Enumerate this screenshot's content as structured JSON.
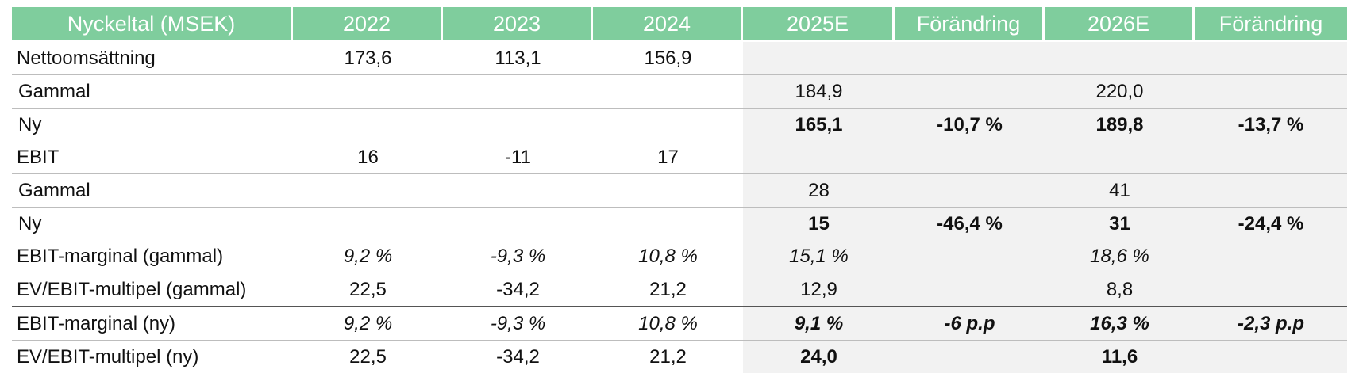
{
  "header": [
    "Nyckeltal (MSEK)",
    "2022",
    "2023",
    "2024",
    "2025E",
    "Förändring",
    "2026E",
    "Förändring"
  ],
  "rows": [
    {
      "label": "Nettoomsättning",
      "cells": [
        "173,6",
        "113,1",
        "156,9",
        "",
        "",
        "",
        ""
      ]
    },
    {
      "label": "Gammal",
      "cells": [
        "",
        "",
        "",
        "184,9",
        "",
        "220,0",
        ""
      ]
    },
    {
      "label": "Ny",
      "cells": [
        "",
        "",
        "",
        "165,1",
        "-10,7 %",
        "189,8",
        "-13,7 %"
      ]
    },
    {
      "label": "EBIT",
      "cells": [
        "16",
        "-11",
        "17",
        "",
        "",
        "",
        ""
      ]
    },
    {
      "label": "Gammal",
      "cells": [
        "",
        "",
        "",
        "28",
        "",
        "41",
        ""
      ]
    },
    {
      "label": "Ny",
      "cells": [
        "",
        "",
        "",
        "15",
        "-46,4 %",
        "31",
        "-24,4 %"
      ]
    },
    {
      "label": "EBIT-marginal (gammal)",
      "cells": [
        "9,2 %",
        "-9,3 %",
        "10,8 %",
        "15,1 %",
        "",
        "18,6 %",
        ""
      ]
    },
    {
      "label": "EV/EBIT-multipel (gammal)",
      "cells": [
        "22,5",
        "-34,2",
        "21,2",
        "12,9",
        "",
        "8,8",
        ""
      ]
    },
    {
      "label": "EBIT-marginal (ny)",
      "cells": [
        "9,2 %",
        "-9,3 %",
        "10,8 %",
        "9,1 %",
        "-6 p.p",
        "16,3 %",
        "-2,3 p.p"
      ]
    },
    {
      "label": "EV/EBIT-multipel (ny)",
      "cells": [
        "22,5",
        "-34,2",
        "21,2",
        "24,0",
        "",
        "11,6",
        ""
      ]
    }
  ],
  "colors": {
    "header_bg": "#7fcd9d",
    "estimate_bg": "#f2f2f2"
  }
}
